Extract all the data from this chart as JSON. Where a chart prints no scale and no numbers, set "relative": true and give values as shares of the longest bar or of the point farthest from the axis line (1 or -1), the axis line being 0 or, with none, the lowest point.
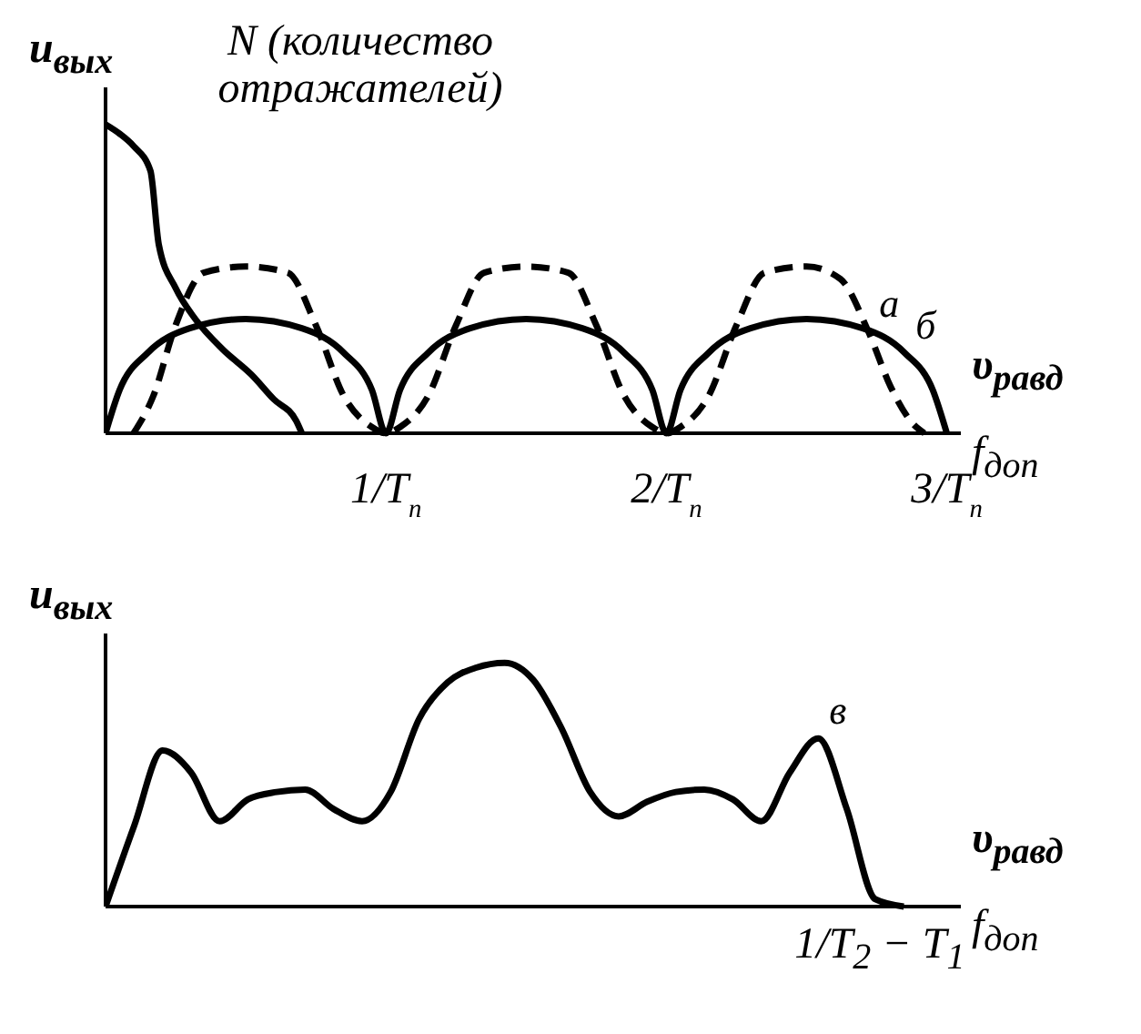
{
  "chart_data": [
    {
      "type": "line",
      "relative": true,
      "ylabel": "u$_{вых}$",
      "xlabel": "f$_{доп}$",
      "annotations": [
        "N (количество отражателей)",
        "υ$_{равд}$"
      ],
      "xlim": [
        0,
        3.05
      ],
      "xticks": [
        {
          "value": 1,
          "label": "1/T$_{n}$"
        },
        {
          "value": 2,
          "label": "2/T$_{n}$"
        },
        {
          "value": 3,
          "label": "3/T$_{n}$"
        }
      ],
      "tick_labels": "x",
      "grid": false,
      "legend": false,
      "marker": "none",
      "series": [
        {
          "color": "#000000",
          "line_style": "solid",
          "x": [
            0,
            0.05,
            0.1,
            0.16,
            0.19,
            0.25,
            0.32,
            0.42,
            0.52,
            0.6,
            0.68,
            0.7
          ],
          "values": [
            1,
            0.97,
            0.93,
            0.85,
            0.61,
            0.47,
            0.37,
            0.27,
            0.19,
            0.11,
            0.04,
            0
          ]
        },
        {
          "name": "а",
          "color": "#000000",
          "line_style": "dashed",
          "x": [
            0.1,
            0.17,
            0.25,
            0.35,
            0.5,
            0.65,
            0.75,
            0.85,
            0.95,
            1,
            1.05,
            1.15,
            1.25,
            1.35,
            1.5,
            1.65,
            1.75,
            1.85,
            1.95,
            2,
            2.05,
            2.15,
            2.25,
            2.35,
            2.5,
            2.62,
            2.72,
            2.8,
            2.88,
            2.92
          ],
          "values": [
            0,
            0.12,
            0.35,
            0.52,
            0.54,
            0.52,
            0.35,
            0.12,
            0.02,
            0,
            0.02,
            0.12,
            0.35,
            0.52,
            0.54,
            0.52,
            0.35,
            0.12,
            0.02,
            0,
            0.02,
            0.12,
            0.35,
            0.52,
            0.54,
            0.5,
            0.33,
            0.15,
            0.03,
            0
          ]
        },
        {
          "name": "б",
          "color": "#000000",
          "line_style": "solid",
          "x": [
            0,
            0.05,
            0.15,
            0.3,
            0.5,
            0.7,
            0.85,
            0.95,
            1,
            1.05,
            1.15,
            1.3,
            1.5,
            1.7,
            1.85,
            1.95,
            2,
            2.05,
            2.15,
            2.3,
            2.5,
            2.7,
            2.85,
            2.95,
            3
          ],
          "values": [
            0,
            0.14,
            0.26,
            0.34,
            0.37,
            0.34,
            0.26,
            0.14,
            0,
            0.14,
            0.26,
            0.34,
            0.37,
            0.34,
            0.26,
            0.14,
            0,
            0.14,
            0.26,
            0.34,
            0.37,
            0.34,
            0.26,
            0.14,
            0
          ]
        }
      ]
    },
    {
      "type": "line",
      "relative": true,
      "ylabel": "u$_{вых}$",
      "xlabel": "f$_{доп}$",
      "annotations": [
        "υ$_{равд}$",
        "1/T$_{2}$ − T$_{1}$"
      ],
      "categories": [
        null,
        null,
        null,
        null,
        null,
        null,
        null,
        null,
        null,
        null,
        null,
        null,
        null,
        null,
        null,
        null,
        null,
        null,
        null,
        null,
        null,
        null,
        null,
        null,
        null,
        null,
        null,
        null,
        null,
        null,
        null
      ],
      "tick_labels": "x",
      "grid": false,
      "legend": false,
      "marker": "none",
      "series": [
        {
          "name": "в",
          "color": "#000000",
          "line_style": "solid",
          "values": [
            0,
            0.33,
            0.64,
            0.55,
            0.35,
            0.44,
            0.47,
            0.48,
            0.4,
            0.35,
            0.47,
            0.77,
            0.92,
            0.98,
            1,
            0.93,
            0.73,
            0.47,
            0.37,
            0.43,
            0.47,
            0.48,
            0.44,
            0.35,
            0.55,
            0.69,
            0.4,
            0.03,
            0,
            null,
            null
          ]
        }
      ]
    }
  ]
}
